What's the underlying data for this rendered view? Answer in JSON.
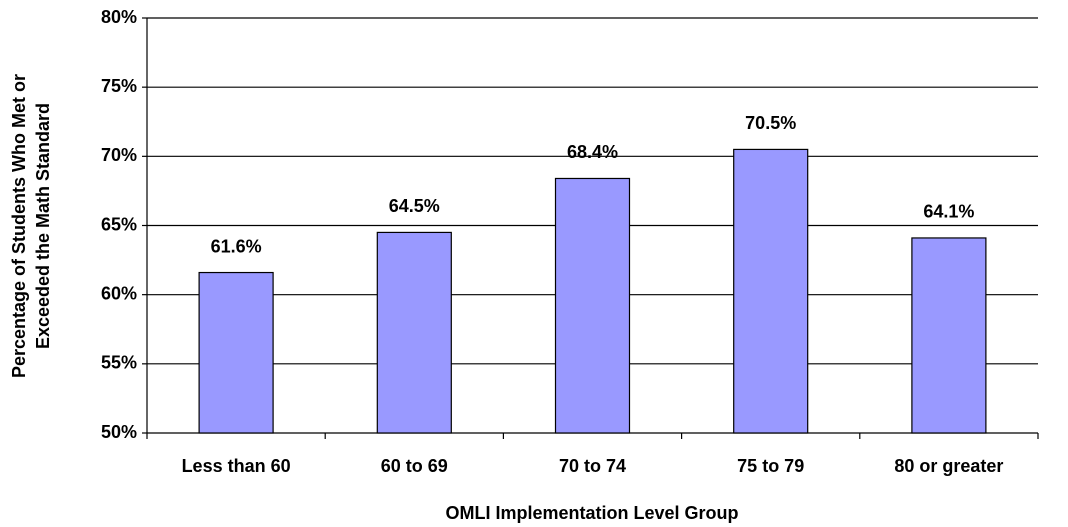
{
  "chart_data": {
    "type": "bar",
    "xlabel": "OMLI Implementation Level Group",
    "ylabel": [
      "Percentage of Students Who Met or",
      "Exceeded the Math Standard"
    ],
    "categories": [
      "Less than 60",
      "60 to 69",
      "70 to 74",
      "75 to 79",
      "80 or greater"
    ],
    "values": [
      61.6,
      64.5,
      68.4,
      70.5,
      64.1
    ],
    "value_labels": [
      "61.6%",
      "64.5%",
      "68.4%",
      "70.5%",
      "64.1%"
    ],
    "color": "#9999ff",
    "ylim": [
      50,
      80
    ],
    "yticks": [
      {
        "value": 50,
        "label": "50%"
      },
      {
        "value": 55,
        "label": "55%"
      },
      {
        "value": 60,
        "label": "60%"
      },
      {
        "value": 65,
        "label": "65%"
      },
      {
        "value": 70,
        "label": "70%"
      },
      {
        "value": 75,
        "label": "75%"
      },
      {
        "value": 80,
        "label": "80%"
      }
    ],
    "grid": true
  }
}
